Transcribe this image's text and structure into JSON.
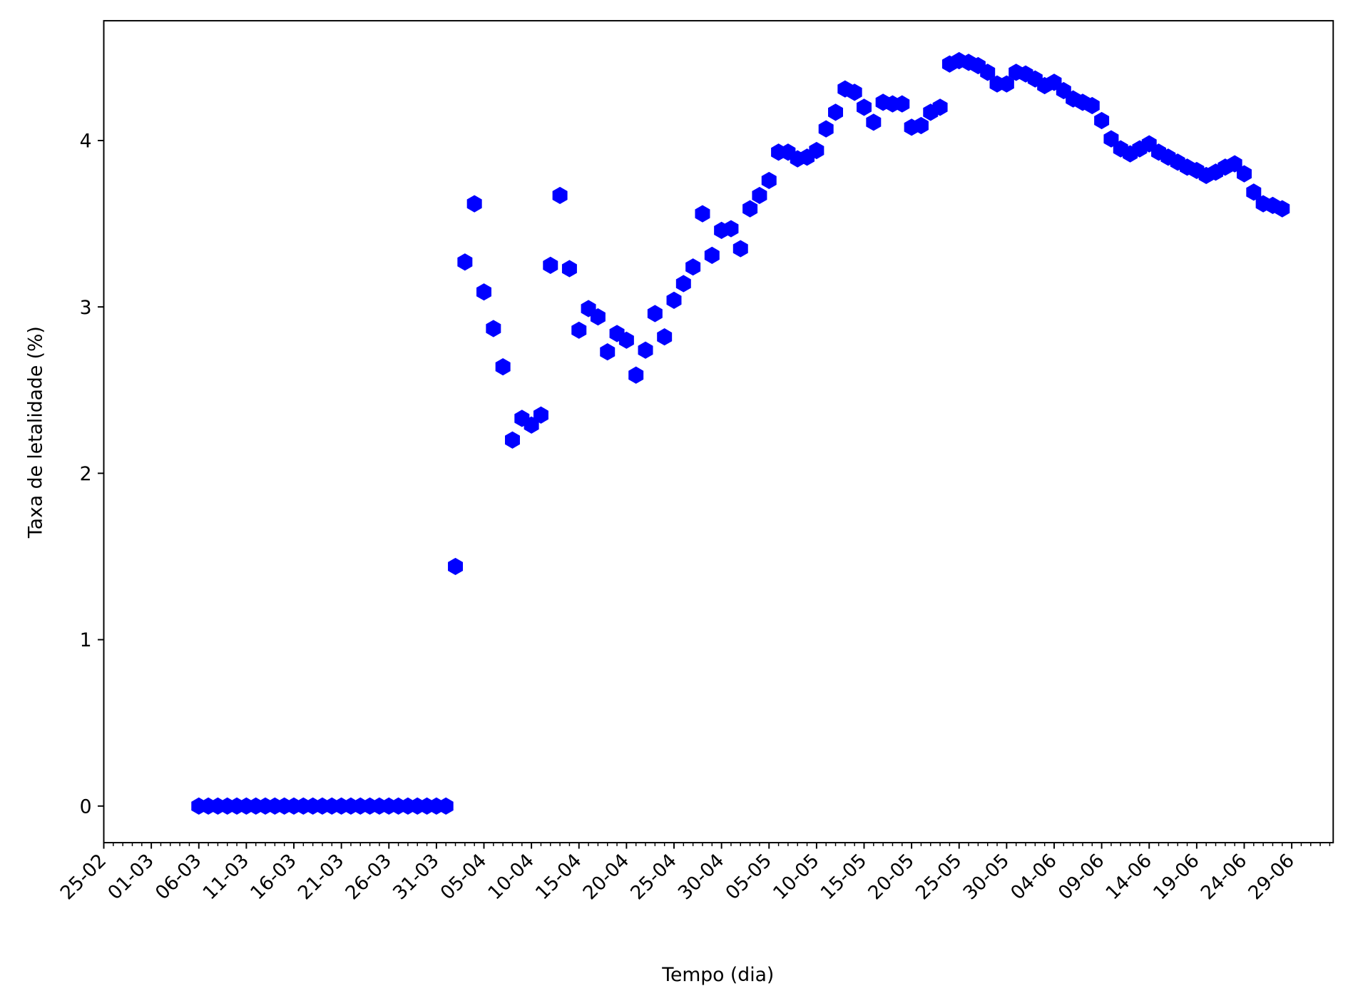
{
  "chart_data": {
    "type": "scatter",
    "xlabel": "Tempo (dia)",
    "ylabel": "Taxa de letalidade (%)",
    "color": "#0000ff",
    "marker": "hexagon",
    "categories": [
      "25-02",
      null,
      null,
      null,
      null,
      "01-03",
      null,
      null,
      null,
      null,
      "06-03",
      null,
      null,
      null,
      null,
      "11-03",
      null,
      null,
      null,
      null,
      "16-03",
      null,
      null,
      null,
      null,
      "21-03",
      null,
      null,
      null,
      null,
      "26-03",
      null,
      null,
      null,
      null,
      "31-03",
      null,
      null,
      null,
      null,
      "05-04",
      null,
      null,
      null,
      null,
      "10-04",
      null,
      null,
      null,
      null,
      "15-04",
      null,
      null,
      null,
      null,
      "20-04",
      null,
      null,
      null,
      null,
      "25-04",
      null,
      null,
      null,
      null,
      "30-04",
      null,
      null,
      null,
      null,
      "05-05",
      null,
      null,
      null,
      null,
      "10-05",
      null,
      null,
      null,
      null,
      "15-05",
      null,
      null,
      null,
      null,
      "20-05",
      null,
      null,
      null,
      null,
      "25-05",
      null,
      null,
      null,
      null,
      "30-05",
      null,
      null,
      null,
      null,
      "04-06",
      null,
      null,
      null,
      null,
      "09-06",
      null,
      null,
      null,
      null,
      "14-06",
      null,
      null,
      null,
      null,
      "19-06",
      null,
      null,
      null,
      null,
      "24-06",
      null,
      null,
      null,
      null,
      "29-06",
      null,
      null,
      null,
      null
    ],
    "values": [
      null,
      null,
      null,
      null,
      null,
      null,
      null,
      null,
      null,
      null,
      0,
      0,
      0,
      0,
      0,
      0,
      0,
      0,
      0,
      0,
      0,
      0,
      0,
      0,
      0,
      0,
      0,
      0,
      0,
      0,
      0,
      0,
      0,
      0,
      0,
      0,
      0,
      1.44,
      3.27,
      3.62,
      3.09,
      2.87,
      2.64,
      2.2,
      2.33,
      2.29,
      2.35,
      3.25,
      3.67,
      3.23,
      2.86,
      2.99,
      2.94,
      2.73,
      2.84,
      2.8,
      2.59,
      2.74,
      2.96,
      2.82,
      3.04,
      3.14,
      3.24,
      3.56,
      3.31,
      3.46,
      3.47,
      3.35,
      3.59,
      3.67,
      3.76,
      3.93,
      3.93,
      3.89,
      3.9,
      3.94,
      4.07,
      4.17,
      4.31,
      4.29,
      4.2,
      4.11,
      4.23,
      4.22,
      4.22,
      4.08,
      4.09,
      4.17,
      4.2,
      4.46,
      4.48,
      4.47,
      4.45,
      4.41,
      4.34,
      4.34,
      4.41,
      4.4,
      4.37,
      4.33,
      4.35,
      4.3,
      4.25,
      4.23,
      4.21,
      4.12,
      4.01,
      3.95,
      3.92,
      3.95,
      3.98,
      3.93,
      3.9,
      3.87,
      3.84,
      3.82,
      3.79,
      3.81,
      3.84,
      3.86,
      3.8,
      3.69,
      3.62,
      3.61,
      3.59,
      null,
      null,
      null,
      null,
      null
    ],
    "ylim": [
      -0.22,
      4.72
    ],
    "yticks": [
      0,
      1,
      2,
      3,
      4
    ],
    "grid": false
  }
}
